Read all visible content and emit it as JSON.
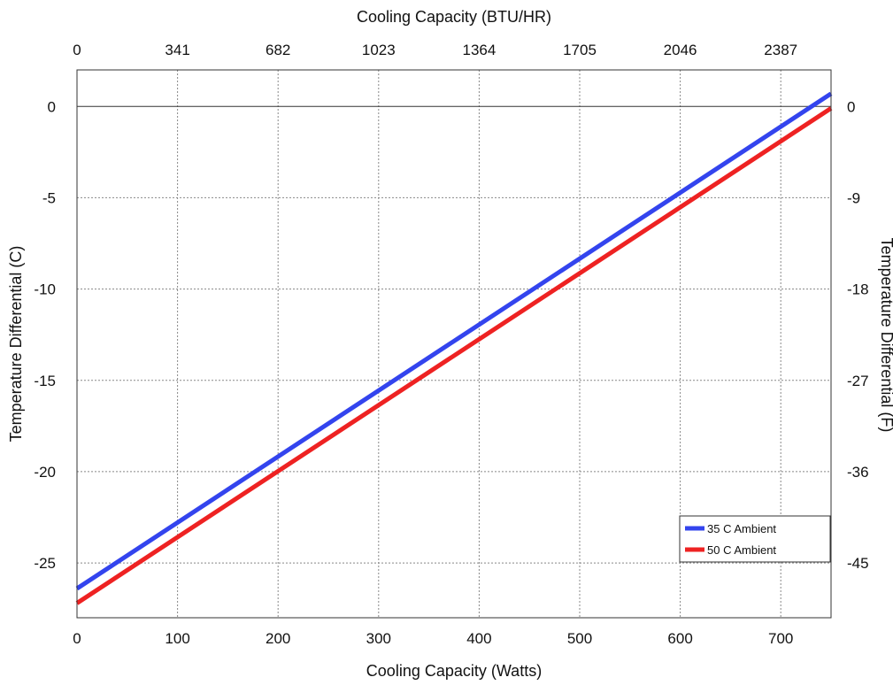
{
  "chart_data": {
    "type": "line",
    "title": "",
    "xlabel": "Cooling Capacity (Watts)",
    "ylabel": "Temperature Differential (C)",
    "x2label": "Cooling Capacity (BTU/HR)",
    "y2label": "Temperature Differential (F)",
    "xlim": [
      0,
      750
    ],
    "ylim": [
      -28,
      2
    ],
    "x_ticks": [
      0,
      100,
      200,
      300,
      400,
      500,
      600,
      700
    ],
    "y_ticks": [
      0,
      -5,
      -10,
      -15,
      -20,
      -25
    ],
    "x2_ticks": [
      {
        "value": 0,
        "label": "0"
      },
      {
        "value": 100,
        "label": "341"
      },
      {
        "value": 200,
        "label": "682"
      },
      {
        "value": 300,
        "label": "1023"
      },
      {
        "value": 400,
        "label": "1364"
      },
      {
        "value": 500,
        "label": "1705"
      },
      {
        "value": 600,
        "label": "2046"
      },
      {
        "value": 700,
        "label": "2387"
      }
    ],
    "y2_ticks": [
      {
        "value": 0,
        "label": "0"
      },
      {
        "value": -5,
        "label": "-9"
      },
      {
        "value": -10,
        "label": "-18"
      },
      {
        "value": -15,
        "label": "-27"
      },
      {
        "value": -20,
        "label": "-36"
      },
      {
        "value": -25,
        "label": "-45"
      }
    ],
    "grid": true,
    "legend_position": "bottom-right",
    "series": [
      {
        "name": "35 C Ambient",
        "color": "#3344ee",
        "x": [
          0,
          750
        ],
        "y": [
          -26.4,
          0.7
        ]
      },
      {
        "name": "50 C Ambient",
        "color": "#ee2222",
        "x": [
          0,
          750
        ],
        "y": [
          -27.2,
          -0.1
        ]
      }
    ]
  }
}
